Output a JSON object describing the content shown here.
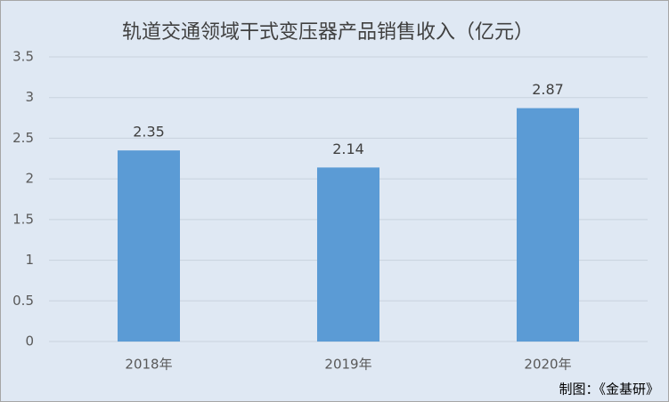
{
  "chart_data": {
    "type": "bar",
    "title": "轨道交通领域干式变压器产品销售收入（亿元）",
    "categories": [
      "2018年",
      "2019年",
      "2020年"
    ],
    "values": [
      2.35,
      2.14,
      2.87
    ],
    "color": "#5b9bd5",
    "ylim": [
      0,
      3.5
    ],
    "yticks": [
      0,
      0.5,
      1,
      1.5,
      2,
      2.5,
      3,
      3.5
    ],
    "grid": true,
    "source": "制图：《金基研》"
  }
}
